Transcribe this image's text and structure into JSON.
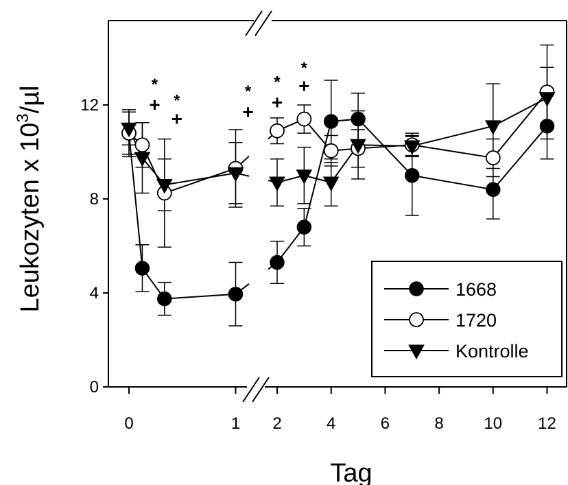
{
  "chart_data": {
    "type": "line",
    "xlabel": "Tag",
    "ylabel": "Leukozyten x 10³/µl",
    "ylabel_main": "Leukozyten x 10",
    "ylabel_sup": "3",
    "ylabel_unit": "/µl",
    "ylim": [
      0,
      15.5
    ],
    "x_axis_break": "between 1 and 2",
    "yticks": [
      0,
      4,
      8,
      12
    ],
    "xticks": [
      0,
      1,
      2,
      4,
      6,
      8,
      10,
      12
    ],
    "legend_position": "bottom-right",
    "grid": false,
    "series": [
      {
        "name": "1668",
        "marker": "filled-circle",
        "x": [
          0,
          0.125,
          0.333,
          1,
          2,
          3,
          4,
          5,
          7,
          10,
          12
        ],
        "y": [
          10.8,
          5.05,
          3.75,
          3.95,
          5.3,
          6.8,
          11.3,
          11.4,
          9.0,
          8.4,
          11.1
        ],
        "err": [
          1.0,
          1.0,
          0.7,
          1.35,
          0.9,
          0.8,
          1.75,
          1.1,
          1.7,
          1.25,
          1.4
        ]
      },
      {
        "name": "1720",
        "marker": "open-circle",
        "x": [
          0,
          0.125,
          0.333,
          1,
          2,
          3,
          4,
          5,
          7,
          10,
          12
        ],
        "y": [
          10.8,
          10.3,
          8.25,
          9.3,
          10.9,
          11.4,
          10.05,
          10.15,
          10.3,
          9.75,
          12.55
        ],
        "err": [
          0.9,
          0.95,
          2.3,
          1.65,
          0.55,
          0.6,
          0.65,
          0.8,
          0.5,
          0.8,
          2.0
        ]
      },
      {
        "name": "Kontrolle",
        "marker": "filled-triangle-down",
        "x": [
          0,
          0.125,
          0.333,
          1,
          2,
          3,
          4,
          5,
          7,
          10,
          12
        ],
        "y": [
          11.0,
          9.75,
          8.6,
          9.1,
          8.7,
          9.0,
          8.7,
          10.3,
          10.25,
          11.1,
          12.3
        ],
        "err": [
          0.7,
          1.5,
          1.1,
          1.3,
          1.0,
          1.2,
          1.0,
          1.45,
          0.4,
          1.8,
          1.3
        ]
      }
    ],
    "annotations": [
      {
        "x": 0.125,
        "text": "*",
        "level": 13.0
      },
      {
        "x": 0.125,
        "text": "+",
        "level": 12.0
      },
      {
        "x": 0.333,
        "text": "*",
        "level": 12.3
      },
      {
        "x": 0.333,
        "text": "+",
        "level": 11.4
      },
      {
        "x": 1,
        "text": "*",
        "level": 12.7
      },
      {
        "x": 1,
        "text": "+",
        "level": 11.7
      },
      {
        "x": 2,
        "text": "*",
        "level": 13.1
      },
      {
        "x": 2,
        "text": "+",
        "level": 12.1
      },
      {
        "x": 3,
        "text": "*",
        "level": 13.7
      },
      {
        "x": 3,
        "text": "+",
        "level": 12.8
      }
    ]
  }
}
